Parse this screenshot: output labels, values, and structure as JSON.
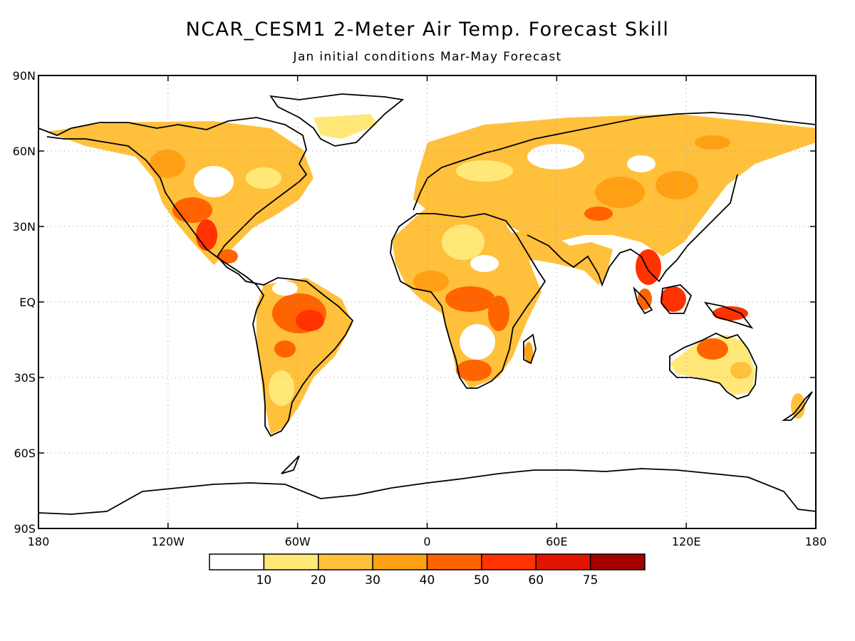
{
  "title": "NCAR_CESM1 2-Meter Air Temp. Forecast Skill",
  "subtitle": "Jan initial conditions  Mar-May Forecast",
  "lat_axis": {
    "labels": [
      "90N",
      "60N",
      "30N",
      "EQ",
      "30S",
      "60S",
      "90S"
    ],
    "values": [
      90,
      60,
      30,
      0,
      -30,
      -60,
      -90
    ]
  },
  "lon_axis": {
    "labels": [
      "180",
      "120W",
      "60W",
      "0",
      "60E",
      "120E",
      "180"
    ],
    "values": [
      -180,
      -120,
      -60,
      0,
      60,
      120,
      180
    ]
  },
  "gridlines": "dotted",
  "colorbar": {
    "labels": [
      "10",
      "20",
      "30",
      "40",
      "50",
      "60",
      "75"
    ],
    "colors": [
      "#ffffff",
      "#ffe878",
      "#ffc03c",
      "#ffa014",
      "#ff6400",
      "#ff3200",
      "#e11400",
      "#a50000"
    ]
  }
}
